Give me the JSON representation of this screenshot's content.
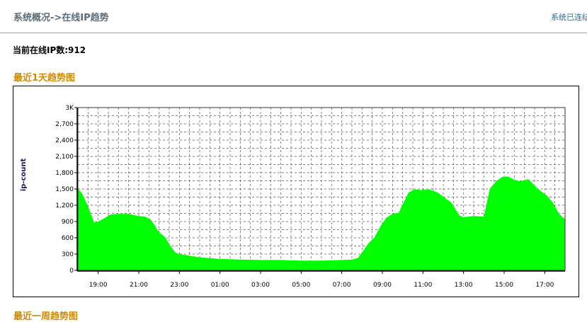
{
  "header": {
    "breadcrumb": "系统概况->在线IP趋势",
    "status": "系统已连结"
  },
  "summary": {
    "online_label": "当前在线IP数:912"
  },
  "section": {
    "title": "最近1天趋势图",
    "next_title": "最近一周趋势图"
  },
  "chart_data": {
    "type": "area",
    "title": "",
    "xlabel": "",
    "ylabel": "ip-count",
    "ylim": [
      0,
      3000
    ],
    "xlim": [
      18.0,
      42.0
    ],
    "yticks": [
      0,
      300,
      600,
      900,
      1200,
      1500,
      1800,
      2100,
      2400,
      2700,
      3000
    ],
    "ytick_labels": [
      "0",
      "300",
      "600",
      "900",
      "1,200",
      "1,500",
      "1,800",
      "2,100",
      "2,400",
      "2,700",
      "3K"
    ],
    "xticks": [
      19,
      21,
      23,
      25,
      27,
      29,
      31,
      33,
      35,
      37,
      39,
      41
    ],
    "xtick_labels": [
      "19:00",
      "21:00",
      "23:00",
      "01:00",
      "03:00",
      "05:00",
      "07:00",
      "09:00",
      "11:00",
      "13:00",
      "15:00",
      "17:00"
    ],
    "grid": true,
    "fill_color": "#00ff00",
    "series": [
      {
        "x": [
          18.0,
          18.2,
          18.5,
          18.8,
          19.0,
          19.3,
          19.6,
          20.0,
          20.5,
          21.0,
          21.3,
          21.6,
          21.8,
          22.0,
          22.3,
          22.5,
          22.8,
          23.0,
          23.5,
          24.0,
          25.0,
          26.0,
          27.0,
          28.0,
          29.0,
          30.0,
          31.0,
          31.5,
          31.8,
          32.0,
          32.3,
          32.6,
          32.9,
          33.2,
          33.5,
          33.8,
          34.0,
          34.3,
          34.6,
          34.9,
          35.3,
          35.7,
          36.0,
          36.4,
          36.8,
          37.0,
          37.5,
          38.0,
          38.3,
          38.6,
          38.9,
          39.2,
          39.5,
          39.8,
          40.2,
          40.5,
          40.8,
          41.1,
          41.4,
          41.7,
          42.0
        ],
        "values": [
          1510,
          1420,
          1180,
          880,
          900,
          960,
          1030,
          1040,
          1040,
          1000,
          990,
          930,
          820,
          700,
          610,
          480,
          330,
          300,
          270,
          240,
          210,
          200,
          190,
          190,
          180,
          180,
          190,
          200,
          230,
          330,
          490,
          600,
          810,
          970,
          1040,
          1060,
          1220,
          1440,
          1490,
          1480,
          1490,
          1440,
          1360,
          1250,
          1010,
          980,
          1000,
          990,
          1510,
          1640,
          1720,
          1730,
          1670,
          1640,
          1680,
          1560,
          1460,
          1380,
          1250,
          1040,
          940
        ]
      }
    ]
  }
}
